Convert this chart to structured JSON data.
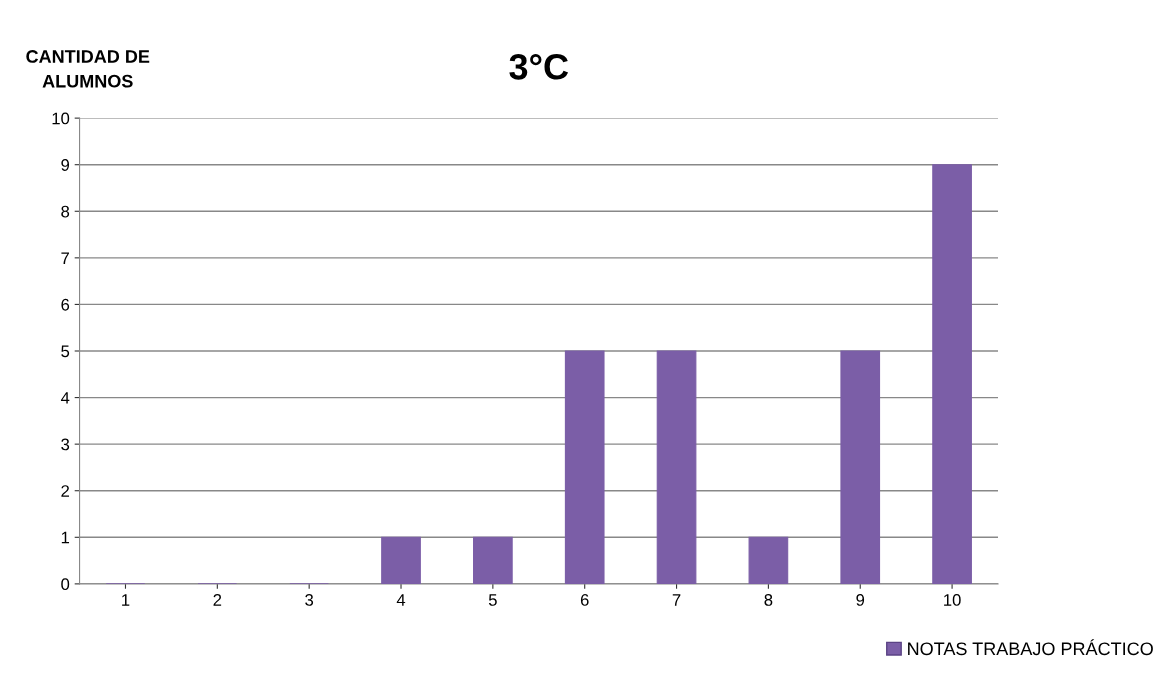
{
  "chart_data": {
    "type": "bar",
    "title": "3°C",
    "ylabel": "CANTIDAD DE\nALUMNOS",
    "categories": [
      "1",
      "2",
      "3",
      "4",
      "5",
      "6",
      "7",
      "8",
      "9",
      "10"
    ],
    "series": [
      {
        "name": "NOTAS TRABAJO PRÁCTICO",
        "color": "#7b5ea7",
        "values": [
          0,
          0,
          0,
          1,
          1,
          5,
          5,
          1,
          5,
          9
        ]
      }
    ],
    "ylim": [
      0,
      10
    ],
    "yticks": [
      0,
      1,
      2,
      3,
      4,
      5,
      6,
      7,
      8,
      9,
      10
    ],
    "grid": "y",
    "legend": "bottom right"
  }
}
